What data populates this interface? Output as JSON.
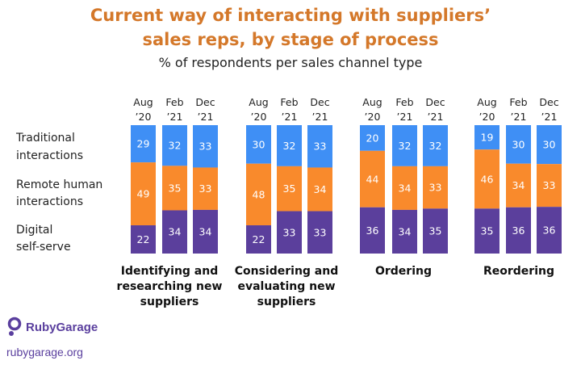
{
  "header": {
    "title_line1": "Current way of interacting with suppliers’",
    "title_line2": "sales reps, by stage of process",
    "subtitle": "% of respondents per sales channel type"
  },
  "brand": {
    "name": "RubyGarage",
    "site": "rubygarage.org",
    "logo_icon": "rubygarage-logo-icon"
  },
  "chart_data": {
    "type": "bar",
    "stacked": true,
    "title": "Current way of interacting with suppliers’ sales reps, by stage of process",
    "subtitle": "% of respondents per sales channel type",
    "row_labels": [
      [
        "Traditional",
        "interactions"
      ],
      [
        "Remote human",
        "interactions"
      ],
      [
        "Digital",
        "self-serve"
      ]
    ],
    "series_colors": {
      "traditional": "#3f8ff5",
      "remote": "#f98a2c",
      "digital": "#5b3f9c"
    },
    "period_labels": [
      [
        "Aug",
        "'20"
      ],
      [
        "Feb",
        "'21"
      ],
      [
        "Dec",
        "'21"
      ]
    ],
    "groups": [
      {
        "label": [
          "Identifying and",
          "researching new",
          "suppliers"
        ],
        "bars": [
          {
            "period": "Aug '20",
            "traditional": 29,
            "remote": 49,
            "digital": 22
          },
          {
            "period": "Feb '21",
            "traditional": 32,
            "remote": 35,
            "digital": 34
          },
          {
            "period": "Dec '21",
            "traditional": 33,
            "remote": 33,
            "digital": 34
          }
        ]
      },
      {
        "label": [
          "Considering and",
          "evaluating new",
          "suppliers"
        ],
        "bars": [
          {
            "period": "Aug '20",
            "traditional": 30,
            "remote": 48,
            "digital": 22
          },
          {
            "period": "Feb '21",
            "traditional": 32,
            "remote": 35,
            "digital": 33
          },
          {
            "period": "Dec '21",
            "traditional": 33,
            "remote": 34,
            "digital": 33
          }
        ]
      },
      {
        "label": [
          "Ordering"
        ],
        "bars": [
          {
            "period": "Aug '20",
            "traditional": 20,
            "remote": 44,
            "digital": 36
          },
          {
            "period": "Feb '21",
            "traditional": 32,
            "remote": 34,
            "digital": 34
          },
          {
            "period": "Dec '21",
            "traditional": 32,
            "remote": 33,
            "digital": 35
          }
        ]
      },
      {
        "label": [
          "Reordering"
        ],
        "bars": [
          {
            "period": "Aug '20",
            "traditional": 19,
            "remote": 46,
            "digital": 35
          },
          {
            "period": "Feb '21",
            "traditional": 30,
            "remote": 34,
            "digital": 36
          },
          {
            "period": "Dec '21",
            "traditional": 30,
            "remote": 33,
            "digital": 36
          }
        ]
      }
    ],
    "legend": "none",
    "grid": false
  }
}
